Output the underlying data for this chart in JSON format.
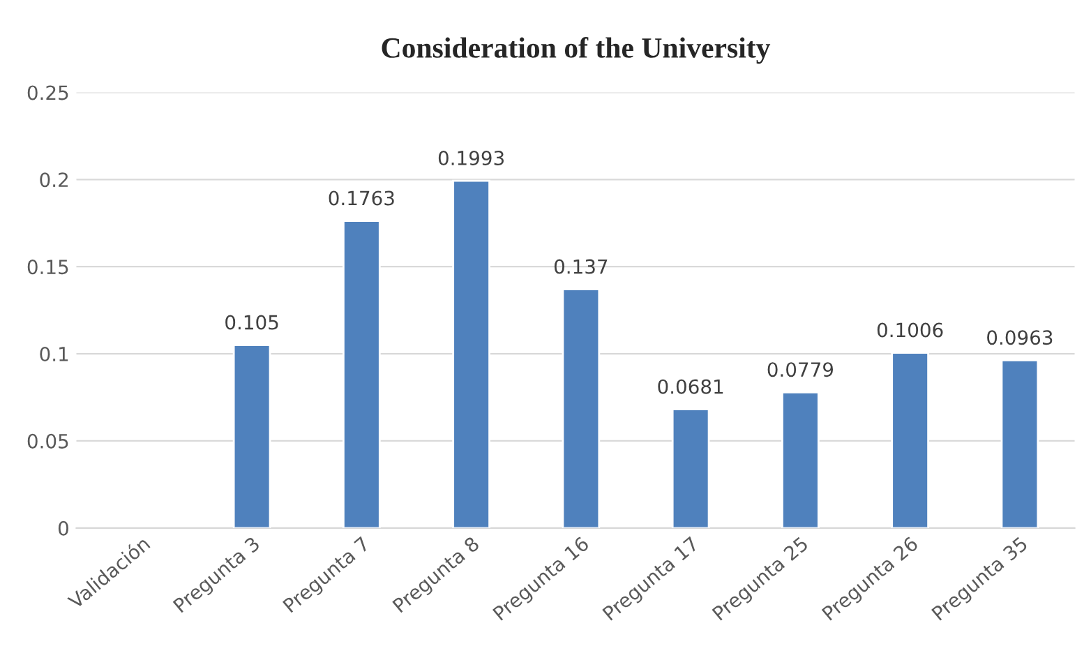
{
  "chart_data": {
    "type": "bar",
    "title": "Consideration of the University",
    "categories": [
      "Validación",
      "Pregunta 3",
      "Pregunta 7",
      "Pregunta 8",
      "Pregunta 16",
      "Pregunta 17",
      "Pregunta 25",
      "Pregunta 26",
      "Pregunta 35"
    ],
    "values": [
      null,
      0.105,
      0.1763,
      0.1993,
      0.137,
      0.0681,
      0.0779,
      0.1006,
      0.0963
    ],
    "color": "#4f81bd",
    "ylim": [
      0,
      0.25
    ],
    "yticks": [
      0,
      0.05,
      0.1,
      0.15,
      0.2,
      0.25
    ],
    "grid": "y",
    "data_labels": true,
    "legend": false
  }
}
